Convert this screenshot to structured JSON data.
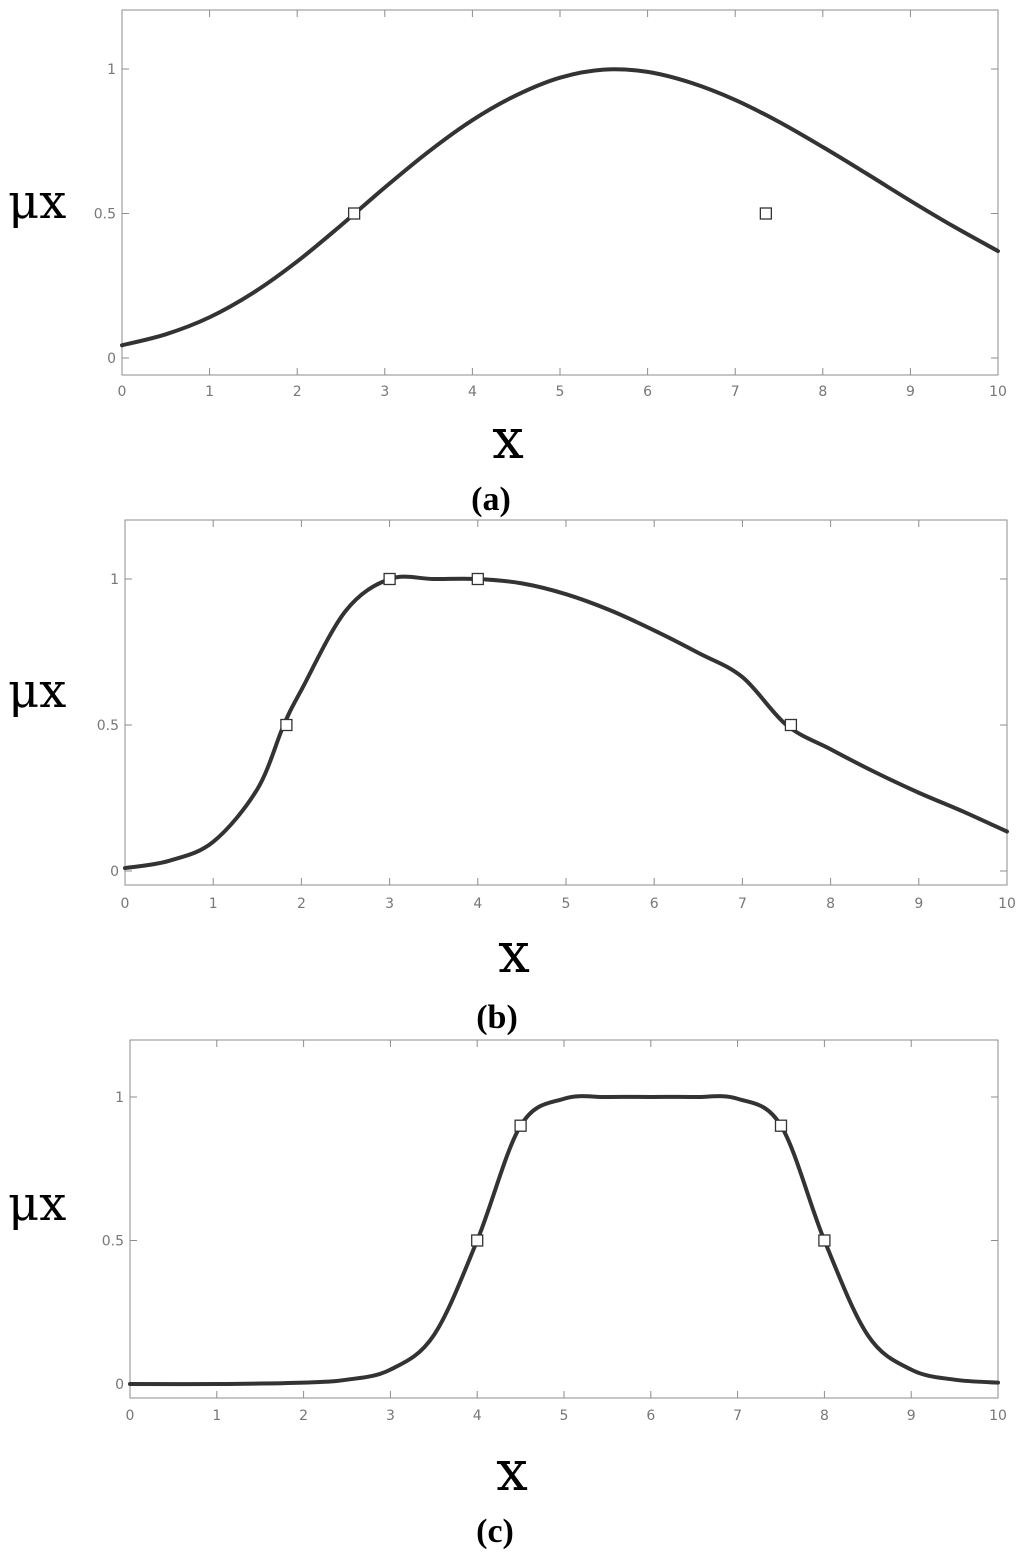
{
  "chart_data": [
    {
      "type": "line",
      "caption": "(a)",
      "xlabel": "x",
      "ylabel": "μx",
      "xlim": [
        0,
        10
      ],
      "ylim": [
        -0.05,
        1.2
      ],
      "x_ticks": [
        "0",
        "1",
        "2",
        "3",
        "4",
        "5",
        "6",
        "7",
        "8",
        "9",
        "10"
      ],
      "y_ticks": [
        "0",
        "0.5",
        "1"
      ],
      "grid": false,
      "series": [
        {
          "x": [
            0,
            0.5,
            1,
            1.5,
            2,
            2.5,
            3,
            3.5,
            4,
            4.5,
            5,
            5.5,
            6,
            6.5,
            7,
            7.5,
            8,
            8.5,
            9,
            9.5,
            10
          ],
          "values": [
            0.044,
            0.082,
            0.141,
            0.226,
            0.334,
            0.459,
            0.59,
            0.714,
            0.823,
            0.909,
            0.97,
            0.998,
            0.99,
            0.952,
            0.893,
            0.817,
            0.73,
            0.638,
            0.544,
            0.454,
            0.37
          ]
        }
      ],
      "markers": [
        {
          "x": 2.65,
          "y": 0.5
        },
        {
          "x": 7.35,
          "y": 0.5
        }
      ]
    },
    {
      "type": "line",
      "caption": "(b)",
      "xlabel": "x",
      "ylabel": "μx",
      "xlim": [
        0,
        10
      ],
      "ylim": [
        -0.05,
        1.2
      ],
      "x_ticks": [
        "0",
        "1",
        "2",
        "3",
        "4",
        "5",
        "6",
        "7",
        "8",
        "9",
        "10"
      ],
      "y_ticks": [
        "0",
        "0.5",
        "1"
      ],
      "grid": false,
      "series": [
        {
          "x": [
            0,
            0.5,
            1,
            1.5,
            1.8,
            2,
            2.5,
            3,
            3.5,
            4,
            4.5,
            5,
            5.5,
            6,
            6.5,
            7,
            7.5,
            8,
            8.5,
            9,
            9.5,
            10
          ],
          "values": [
            0.01,
            0.035,
            0.1,
            0.28,
            0.5,
            0.62,
            0.89,
            1.0,
            1.0,
            1.0,
            0.985,
            0.948,
            0.893,
            0.824,
            0.747,
            0.664,
            0.5,
            0.417,
            0.339,
            0.268,
            0.204,
            0.135
          ]
        }
      ],
      "markers": [
        {
          "x": 1.83,
          "y": 0.5
        },
        {
          "x": 3.0,
          "y": 1.0
        },
        {
          "x": 4.0,
          "y": 1.0
        },
        {
          "x": 7.55,
          "y": 0.5
        }
      ]
    },
    {
      "type": "line",
      "caption": "(c)",
      "xlabel": "x",
      "ylabel": "μx",
      "xlim": [
        0,
        10
      ],
      "ylim": [
        -0.05,
        1.2
      ],
      "x_ticks": [
        "0",
        "1",
        "2",
        "3",
        "4",
        "5",
        "6",
        "7",
        "8",
        "9",
        "10"
      ],
      "y_ticks": [
        "0",
        "0.5",
        "1"
      ],
      "grid": false,
      "series": [
        {
          "x": [
            0,
            1,
            2,
            2.5,
            3,
            3.5,
            4,
            4.5,
            5,
            5.5,
            6,
            6.5,
            7,
            7.5,
            8,
            8.5,
            9,
            9.5,
            10
          ],
          "values": [
            0.0,
            0.0,
            0.005,
            0.015,
            0.05,
            0.17,
            0.5,
            0.9,
            0.994,
            1.0,
            1.0,
            1.0,
            0.994,
            0.9,
            0.5,
            0.17,
            0.05,
            0.015,
            0.005
          ]
        }
      ],
      "markers": [
        {
          "x": 4.0,
          "y": 0.5
        },
        {
          "x": 4.5,
          "y": 0.9
        },
        {
          "x": 7.5,
          "y": 0.9
        },
        {
          "x": 8.0,
          "y": 0.5
        }
      ]
    }
  ]
}
